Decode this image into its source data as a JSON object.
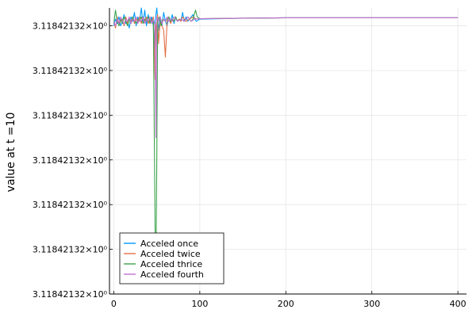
{
  "chart_data": {
    "type": "line",
    "title": "",
    "xlabel": "",
    "ylabel": "value at t =10",
    "xlim": [
      -5,
      410
    ],
    "xticks": [
      0,
      100,
      200,
      300,
      400
    ],
    "xtick_labels": [
      "0",
      "100",
      "200",
      "300",
      "400"
    ],
    "ylim": [
      0.0,
      6.4
    ],
    "yticks": [
      0,
      1,
      2,
      3,
      4,
      5,
      6
    ],
    "ytick_labels": [
      "3.11842132×10⁰",
      "3.11842132×10⁰",
      "3.11842132×10⁰",
      "3.11842132×10⁰",
      "3.11842132×10⁰",
      "3.11842132×10⁰",
      "3.11842132×10⁰"
    ],
    "grid": true,
    "legend_position": "bottom-left",
    "series": [
      {
        "name": "Acceled once",
        "color": "#009AFA",
        "points": [
          [
            0,
            6.0
          ],
          [
            2,
            6.15
          ],
          [
            4,
            6.05
          ],
          [
            6,
            6.2
          ],
          [
            8,
            6.0
          ],
          [
            10,
            6.1
          ],
          [
            12,
            6.25
          ],
          [
            14,
            6.05
          ],
          [
            16,
            6.1
          ],
          [
            18,
            5.95
          ],
          [
            20,
            6.2
          ],
          [
            22,
            6.1
          ],
          [
            24,
            6.3
          ],
          [
            26,
            6.0
          ],
          [
            28,
            6.2
          ],
          [
            30,
            6.1
          ],
          [
            32,
            6.4
          ],
          [
            34,
            6.05
          ],
          [
            36,
            6.35
          ],
          [
            38,
            6.0
          ],
          [
            40,
            6.25
          ],
          [
            42,
            6.1
          ],
          [
            44,
            6.2
          ],
          [
            46,
            6.0
          ],
          [
            47,
            5.3
          ],
          [
            48,
            6.1
          ],
          [
            50,
            6.4
          ],
          [
            52,
            5.9
          ],
          [
            54,
            6.2
          ],
          [
            56,
            6.0
          ],
          [
            58,
            6.3
          ],
          [
            60,
            6.1
          ],
          [
            62,
            6.0
          ],
          [
            64,
            6.2
          ],
          [
            66,
            6.1
          ],
          [
            68,
            6.25
          ],
          [
            70,
            6.05
          ],
          [
            72,
            6.2
          ],
          [
            74,
            6.1
          ],
          [
            76,
            6.15
          ],
          [
            78,
            6.1
          ],
          [
            80,
            6.3
          ],
          [
            82,
            6.1
          ],
          [
            84,
            6.2
          ],
          [
            86,
            6.1
          ],
          [
            88,
            6.15
          ],
          [
            90,
            6.2
          ],
          [
            92,
            6.25
          ],
          [
            94,
            6.15
          ],
          [
            96,
            6.1
          ],
          [
            100,
            6.15
          ],
          [
            150,
            6.17
          ],
          [
            200,
            6.18
          ],
          [
            250,
            6.18
          ],
          [
            300,
            6.18
          ],
          [
            350,
            6.18
          ],
          [
            400,
            6.18
          ]
        ]
      },
      {
        "name": "Acceled twice",
        "color": "#E36F47",
        "points": [
          [
            0,
            6.1
          ],
          [
            2,
            5.95
          ],
          [
            4,
            6.2
          ],
          [
            6,
            6.05
          ],
          [
            8,
            6.1
          ],
          [
            10,
            6.15
          ],
          [
            12,
            6.0
          ],
          [
            14,
            6.2
          ],
          [
            16,
            6.05
          ],
          [
            18,
            6.15
          ],
          [
            20,
            6.1
          ],
          [
            22,
            6.2
          ],
          [
            24,
            6.05
          ],
          [
            26,
            6.15
          ],
          [
            28,
            6.1
          ],
          [
            30,
            6.2
          ],
          [
            32,
            6.05
          ],
          [
            34,
            6.2
          ],
          [
            36,
            6.1
          ],
          [
            38,
            6.2
          ],
          [
            40,
            6.05
          ],
          [
            42,
            6.15
          ],
          [
            44,
            6.1
          ],
          [
            46,
            6.2
          ],
          [
            48,
            4.8
          ],
          [
            49,
            6.0
          ],
          [
            51,
            6.25
          ],
          [
            52,
            5.6
          ],
          [
            54,
            6.1
          ],
          [
            56,
            6.0
          ],
          [
            58,
            5.9
          ],
          [
            60,
            5.3
          ],
          [
            62,
            6.1
          ],
          [
            64,
            6.2
          ],
          [
            66,
            6.05
          ],
          [
            68,
            6.15
          ],
          [
            70,
            6.1
          ],
          [
            72,
            6.2
          ],
          [
            74,
            6.1
          ],
          [
            76,
            6.15
          ],
          [
            78,
            6.1
          ],
          [
            80,
            6.2
          ],
          [
            84,
            6.1
          ],
          [
            88,
            6.15
          ],
          [
            92,
            6.2
          ],
          [
            96,
            6.15
          ],
          [
            100,
            6.16
          ],
          [
            150,
            6.17
          ],
          [
            200,
            6.18
          ],
          [
            250,
            6.18
          ],
          [
            300,
            6.18
          ],
          [
            350,
            6.18
          ],
          [
            400,
            6.18
          ]
        ]
      },
      {
        "name": "Acceled thrice",
        "color": "#3EA44E",
        "points": [
          [
            0,
            6.05
          ],
          [
            2,
            6.35
          ],
          [
            4,
            6.1
          ],
          [
            6,
            6.0
          ],
          [
            8,
            6.15
          ],
          [
            10,
            6.05
          ],
          [
            12,
            6.2
          ],
          [
            14,
            6.1
          ],
          [
            16,
            6.0
          ],
          [
            18,
            6.15
          ],
          [
            20,
            6.05
          ],
          [
            22,
            6.2
          ],
          [
            24,
            6.1
          ],
          [
            26,
            6.05
          ],
          [
            28,
            6.15
          ],
          [
            30,
            6.1
          ],
          [
            32,
            6.2
          ],
          [
            34,
            6.05
          ],
          [
            36,
            6.15
          ],
          [
            38,
            6.1
          ],
          [
            40,
            6.2
          ],
          [
            42,
            6.05
          ],
          [
            44,
            6.15
          ],
          [
            46,
            6.1
          ],
          [
            48,
            1.5
          ],
          [
            49,
            0.5
          ],
          [
            50,
            3.0
          ],
          [
            51,
            6.1
          ],
          [
            53,
            6.2
          ],
          [
            55,
            6.0
          ],
          [
            57,
            6.15
          ],
          [
            60,
            6.1
          ],
          [
            62,
            6.15
          ],
          [
            64,
            6.2
          ],
          [
            66,
            6.1
          ],
          [
            68,
            6.15
          ],
          [
            70,
            6.1
          ],
          [
            72,
            6.2
          ],
          [
            74,
            6.1
          ],
          [
            78,
            6.15
          ],
          [
            82,
            6.1
          ],
          [
            86,
            6.2
          ],
          [
            90,
            6.1
          ],
          [
            92,
            6.15
          ],
          [
            95,
            6.35
          ],
          [
            97,
            6.2
          ],
          [
            100,
            6.16
          ],
          [
            150,
            6.17
          ],
          [
            200,
            6.18
          ],
          [
            250,
            6.18
          ],
          [
            300,
            6.18
          ],
          [
            350,
            6.18
          ],
          [
            400,
            6.18
          ]
        ]
      },
      {
        "name": "Acceled fourth",
        "color": "#C271D2",
        "points": [
          [
            0,
            6.1
          ],
          [
            2,
            6.0
          ],
          [
            4,
            6.15
          ],
          [
            6,
            6.05
          ],
          [
            8,
            6.2
          ],
          [
            10,
            6.1
          ],
          [
            12,
            6.05
          ],
          [
            14,
            6.15
          ],
          [
            16,
            6.1
          ],
          [
            18,
            6.2
          ],
          [
            20,
            6.05
          ],
          [
            22,
            6.15
          ],
          [
            24,
            6.1
          ],
          [
            26,
            6.2
          ],
          [
            28,
            6.05
          ],
          [
            30,
            6.15
          ],
          [
            32,
            6.1
          ],
          [
            34,
            6.2
          ],
          [
            36,
            6.05
          ],
          [
            38,
            6.15
          ],
          [
            40,
            6.1
          ],
          [
            42,
            6.2
          ],
          [
            44,
            6.05
          ],
          [
            46,
            6.15
          ],
          [
            48,
            6.0
          ],
          [
            49,
            3.5
          ],
          [
            50,
            6.2
          ],
          [
            52,
            6.1
          ],
          [
            54,
            6.2
          ],
          [
            56,
            6.05
          ],
          [
            58,
            6.15
          ],
          [
            60,
            6.1
          ],
          [
            62,
            6.2
          ],
          [
            64,
            6.1
          ],
          [
            66,
            6.15
          ],
          [
            68,
            6.1
          ],
          [
            70,
            6.2
          ],
          [
            74,
            6.1
          ],
          [
            78,
            6.15
          ],
          [
            82,
            6.1
          ],
          [
            86,
            6.2
          ],
          [
            90,
            6.1
          ],
          [
            94,
            6.15
          ],
          [
            100,
            6.16
          ],
          [
            150,
            6.17
          ],
          [
            200,
            6.18
          ],
          [
            250,
            6.18
          ],
          [
            300,
            6.18
          ],
          [
            350,
            6.18
          ],
          [
            400,
            6.18
          ]
        ]
      }
    ]
  }
}
